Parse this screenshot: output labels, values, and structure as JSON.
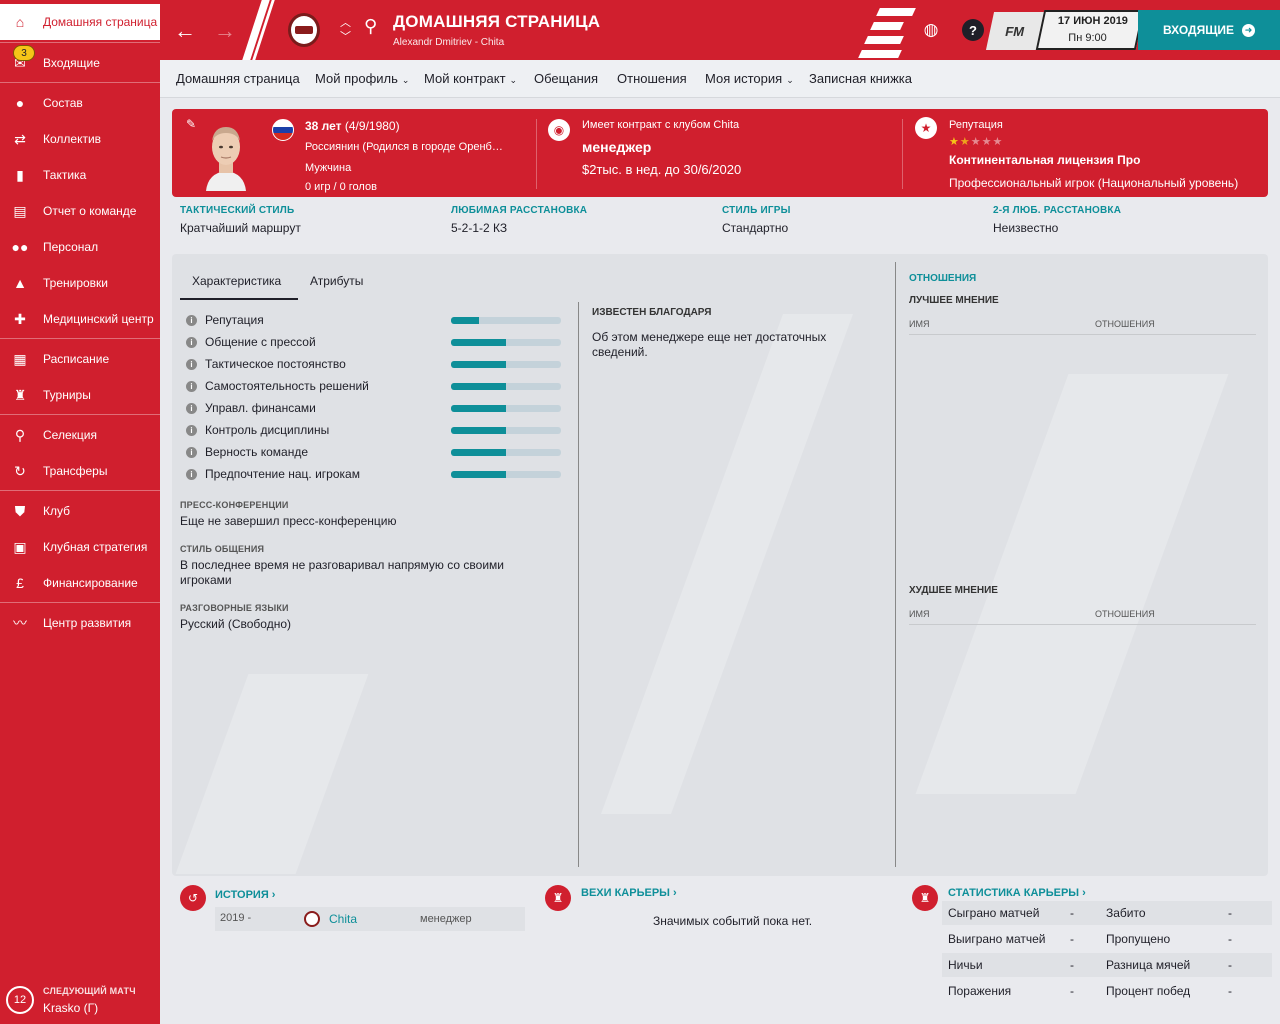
{
  "sidebar": {
    "inbox_badge": "3",
    "items": [
      {
        "label": "Домашняя страница",
        "icon": "home-icon",
        "glyph": "⌂"
      },
      {
        "label": "Входящие",
        "icon": "inbox-icon",
        "glyph": "✉"
      },
      {
        "label": "Состав",
        "icon": "squad-icon",
        "glyph": "👤"
      },
      {
        "label": "Коллектив",
        "icon": "dynamics-icon",
        "glyph": "⇄"
      },
      {
        "label": "Тактика",
        "icon": "tactics-icon",
        "glyph": "▮"
      },
      {
        "label": "Отчет о команде",
        "icon": "report-icon",
        "glyph": "▤"
      },
      {
        "label": "Персонал",
        "icon": "staff-icon",
        "glyph": "👥"
      },
      {
        "label": "Тренировки",
        "icon": "training-icon",
        "glyph": "▲"
      },
      {
        "label": "Медицинский центр",
        "icon": "medical-icon",
        "glyph": "✚"
      },
      {
        "label": "Расписание",
        "icon": "schedule-icon",
        "glyph": "▦"
      },
      {
        "label": "Турниры",
        "icon": "trophy-icon",
        "glyph": "🏆"
      },
      {
        "label": "Селекция",
        "icon": "scouting-icon",
        "glyph": "🔍"
      },
      {
        "label": "Трансферы",
        "icon": "transfers-icon",
        "glyph": "↻"
      },
      {
        "label": "Клуб",
        "icon": "club-shield-icon",
        "glyph": "⛊"
      },
      {
        "label": "Клубная стратегия",
        "icon": "briefcase-icon",
        "glyph": "▣"
      },
      {
        "label": "Финансирование",
        "icon": "finance-icon",
        "glyph": "£"
      },
      {
        "label": "Центр развития",
        "icon": "development-icon",
        "glyph": "〰"
      }
    ],
    "next_match": {
      "label": "СЛЕДУЮЩИЙ МАТЧ",
      "days": "12",
      "opponent": "Krasko (Г)"
    }
  },
  "topbar": {
    "title": "ДОМАШНЯЯ СТРАНИЦА",
    "subtitle": "Alexandr Dmitriev - Chita",
    "fm_label": "FM",
    "date": "17 ИЮН 2019",
    "time": "Пн 9:00",
    "inbox_button": "ВХОДЯЩИЕ"
  },
  "subnav": {
    "tabs": [
      "Домашняя страница",
      "Мой профиль",
      "Мой контракт",
      "Обещания",
      "Отношения",
      "Моя история",
      "Записная книжка"
    ]
  },
  "profile": {
    "age": "38 лет",
    "dob": "(4/9/1980)",
    "nationality": "Россиянин (Родился в городе Оренб…",
    "gender": "Мужчина",
    "games": "0 игр / 0 голов",
    "contract_label": "Имеет контракт с клубом Chita",
    "role": "менеджер",
    "salary": "$2тыс. в нед. до 30/6/2020",
    "reputation_label": "Репутация",
    "reputation_stars": 1.5,
    "license": "Континентальная лицензия Про",
    "playing_career": "Профессиональный игрок (Национальный уровень)"
  },
  "styles": [
    {
      "label": "ТАКТИЧЕСКИЙ СТИЛЬ",
      "value": "Кратчайший маршрут"
    },
    {
      "label": "ЛЮБИМАЯ РАССТАНОВКА",
      "value": "5-2-1-2 КЗ"
    },
    {
      "label": "СТИЛЬ ИГРЫ",
      "value": "Стандартно"
    },
    {
      "label": "2-Я ЛЮБ. РАССТАНОВКА",
      "value": "Неизвестно"
    }
  ],
  "inner_tabs": [
    "Характеристика",
    "Атрибуты"
  ],
  "attributes": [
    {
      "label": "Репутация",
      "level": 0.25
    },
    {
      "label": "Общение с прессой",
      "level": 0.5
    },
    {
      "label": "Тактическое постоянство",
      "level": 0.5
    },
    {
      "label": "Самостоятельность решений",
      "level": 0.5
    },
    {
      "label": "Управл. финансами",
      "level": 0.5
    },
    {
      "label": "Контроль дисциплины",
      "level": 0.5
    },
    {
      "label": "Верность команде",
      "level": 0.5
    },
    {
      "label": "Предпочтение нац. игрокам",
      "level": 0.5
    }
  ],
  "sections": [
    {
      "label": "ПРЕСС-КОНФЕРЕНЦИИ",
      "value": "Еще не завершил пресс-конференцию"
    },
    {
      "label": "СТИЛЬ ОБЩЕНИЯ",
      "value": "В последнее время не разговаривал напрямую со своими игроками"
    },
    {
      "label": "РАЗГОВОРНЫЕ ЯЗЫКИ",
      "value": "Русский (Свободно)"
    }
  ],
  "known_for": {
    "label": "ИЗВЕСТЕН БЛАГОДАРЯ",
    "value": "Об этом менеджере еще нет достаточных сведений."
  },
  "relationships": {
    "title": "ОТНОШЕНИЯ",
    "best": "ЛУЧШЕЕ МНЕНИЕ",
    "worst": "ХУДШЕЕ МНЕНИЕ",
    "col_name": "ИМЯ",
    "col_rel": "ОТНОШЕНИЯ"
  },
  "history": {
    "title": "ИСТОРИЯ",
    "year": "2019 -",
    "club": "Chita",
    "role": "менеджер"
  },
  "milestones": {
    "title": "ВЕХИ КАРЬЕРЫ",
    "empty": "Значимых событий пока нет."
  },
  "career_stats": {
    "title": "СТАТИСТИКА КАРЬЕРЫ",
    "rows": [
      {
        "l1": "Сыграно матчей",
        "v1": "-",
        "l2": "Забито",
        "v2": "-"
      },
      {
        "l1": "Выиграно матчей",
        "v1": "-",
        "l2": "Пропущено",
        "v2": "-"
      },
      {
        "l1": "Ничьи",
        "v1": "-",
        "l2": "Разница мячей",
        "v2": "-"
      },
      {
        "l1": "Поражения",
        "v1": "-",
        "l2": "Процент побед",
        "v2": "-"
      }
    ]
  },
  "colors": {
    "accent": "#d01f2e",
    "teal": "#0e8f99"
  }
}
